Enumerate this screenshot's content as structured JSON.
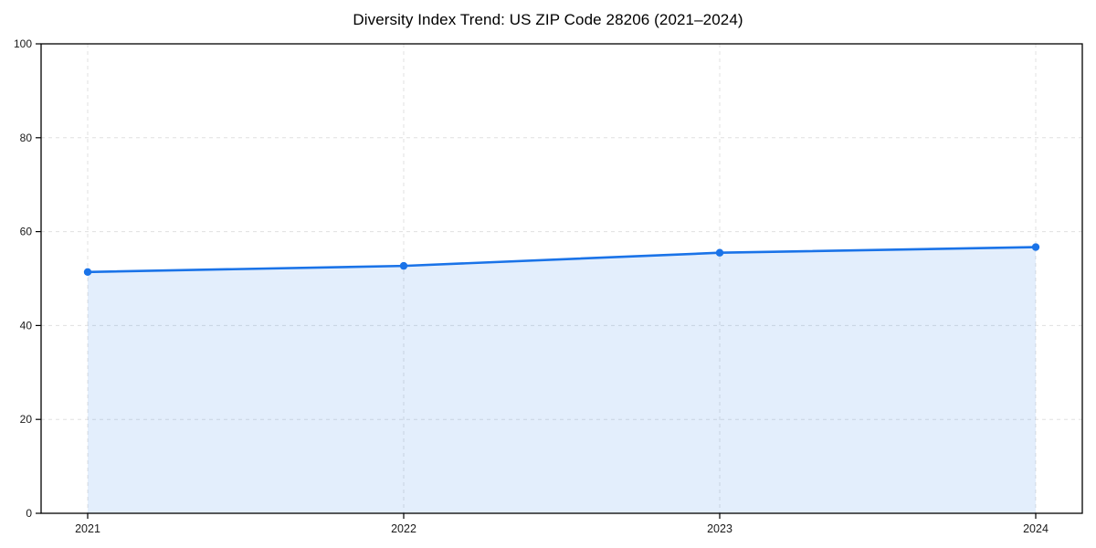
{
  "page": {
    "background": "#ffffff"
  },
  "chart_data": {
    "type": "area",
    "title": "Diversity Index Trend: US ZIP Code 28206 (2021–2024)",
    "categories": [
      "2021",
      "2022",
      "2023",
      "2024"
    ],
    "values": [
      51.4,
      52.7,
      55.5,
      56.7
    ],
    "xlabel": "",
    "ylabel": "",
    "ylim": [
      0,
      100
    ],
    "y_ticks": [
      0,
      20,
      40,
      60,
      80,
      100
    ],
    "grid": "dashed-both-axes",
    "legend_position": "none",
    "colors": {
      "line": "#1a73e8",
      "marker": "#1a73e8",
      "fill": "rgba(26,115,232,0.12)",
      "grid": "#e0e0e0",
      "axis": "#000000",
      "tick_label": "#1a1a1a",
      "title": "#000000"
    }
  }
}
